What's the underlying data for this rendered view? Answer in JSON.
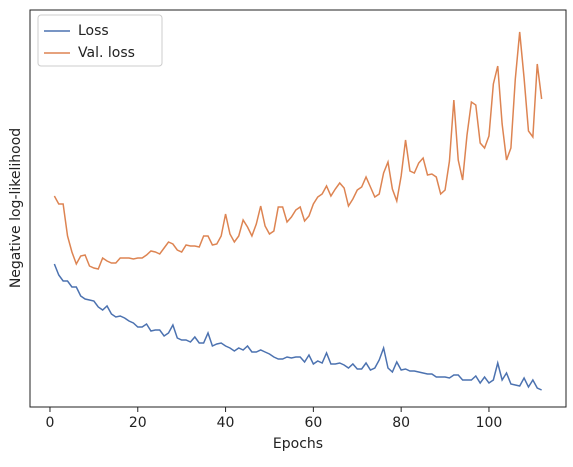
{
  "chart_data": {
    "type": "line",
    "xlabel": "Epochs",
    "ylabel": "Negative log-likelihood",
    "x": [
      1,
      2,
      3,
      4,
      5,
      6,
      7,
      8,
      9,
      10,
      11,
      12,
      13,
      14,
      15,
      16,
      17,
      18,
      19,
      20,
      21,
      22,
      23,
      24,
      25,
      26,
      27,
      28,
      29,
      30,
      31,
      32,
      33,
      34,
      35,
      36,
      37,
      38,
      39,
      40,
      41,
      42,
      43,
      44,
      45,
      46,
      47,
      48,
      49,
      50,
      51,
      52,
      53,
      54,
      55,
      56,
      57,
      58,
      59,
      60,
      61,
      62,
      63,
      64,
      65,
      66,
      67,
      68,
      69,
      70,
      71,
      72,
      73,
      74,
      75,
      76,
      77,
      78,
      79,
      80,
      81,
      82,
      83,
      84,
      85,
      86,
      87,
      88,
      89,
      90,
      91,
      92,
      93,
      94,
      95,
      96,
      97,
      98,
      99,
      100,
      101,
      102,
      103,
      104,
      105,
      106,
      107,
      108,
      109,
      110,
      111,
      112
    ],
    "series": [
      {
        "name": "Loss",
        "color": "#4c72b0",
        "values": [
          143,
          132,
          126,
          126,
          120,
          120,
          111,
          108,
          107,
          106,
          100,
          97,
          101,
          93,
          90,
          91,
          89,
          86,
          84,
          80,
          80,
          83,
          76,
          77,
          77,
          71,
          74,
          82,
          69,
          67,
          67,
          65,
          70,
          64,
          64,
          74,
          61,
          63,
          64,
          61,
          59,
          56,
          59,
          57,
          61,
          55,
          55,
          57,
          55,
          53,
          50,
          48,
          48,
          50,
          49,
          50,
          50,
          45,
          52,
          43,
          46,
          44,
          54,
          43,
          43,
          44,
          42,
          39,
          43,
          38,
          38,
          44,
          37,
          39,
          47,
          59,
          39,
          35,
          45,
          37,
          38,
          36,
          36,
          35,
          34,
          33,
          33,
          30,
          30,
          30,
          29,
          32,
          32,
          27,
          27,
          27,
          31,
          24,
          30,
          24,
          27,
          44,
          27,
          34,
          23,
          22,
          21,
          29,
          20,
          27,
          19,
          17
        ]
      },
      {
        "name": "Val. loss",
        "color": "#dd8452",
        "values": [
          211,
          203,
          203,
          171,
          155,
          143,
          151,
          152,
          141,
          139,
          138,
          149,
          146,
          144,
          144,
          149,
          149,
          149,
          148,
          149,
          149,
          152,
          156,
          155,
          153,
          159,
          165,
          163,
          157,
          155,
          162,
          161,
          161,
          160,
          171,
          171,
          162,
          163,
          171,
          193,
          173,
          165,
          171,
          187,
          180,
          171,
          183,
          201,
          181,
          173,
          176,
          200,
          200,
          185,
          190,
          197,
          200,
          186,
          191,
          203,
          210,
          213,
          221,
          211,
          218,
          224,
          219,
          201,
          208,
          217,
          220,
          230,
          220,
          210,
          213,
          234,
          245,
          218,
          206,
          231,
          267,
          236,
          234,
          244,
          249,
          232,
          233,
          230,
          213,
          217,
          246,
          307,
          247,
          227,
          272,
          305,
          302,
          264,
          259,
          271,
          323,
          341,
          283,
          247,
          259,
          328,
          375,
          329,
          276,
          270,
          343,
          308
        ]
      }
    ],
    "xlim": [
      -4.55,
      117.55
    ],
    "xticks": [
      0,
      20,
      40,
      60,
      80,
      100
    ],
    "ylim": [
      0,
      397
    ],
    "legend": "upper left"
  }
}
